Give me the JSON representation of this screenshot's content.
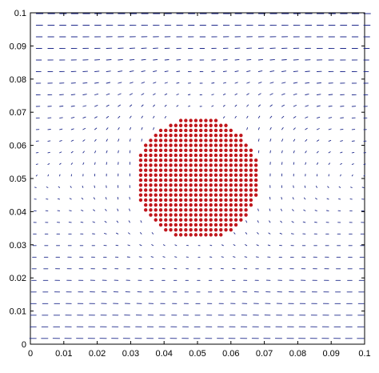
{
  "chart_data": {
    "type": "scatter",
    "title": "",
    "xlabel": "",
    "ylabel": "",
    "xlim": [
      0,
      0.1
    ],
    "ylim": [
      0,
      0.1
    ],
    "grid": false,
    "xticks": [
      "0",
      "0.01",
      "0.02",
      "0.03",
      "0.04",
      "0.05",
      "0.06",
      "0.07",
      "0.08",
      "0.09",
      "0.1"
    ],
    "yticks": [
      "0",
      "0.01",
      "0.02",
      "0.03",
      "0.04",
      "0.05",
      "0.06",
      "0.07",
      "0.08",
      "0.09",
      "0.1"
    ],
    "xtick_values": [
      0,
      0.01,
      0.02,
      0.03,
      0.04,
      0.05,
      0.06,
      0.07,
      0.08,
      0.09,
      0.1
    ],
    "ytick_values": [
      0,
      0.01,
      0.02,
      0.03,
      0.04,
      0.05,
      0.06,
      0.07,
      0.08,
      0.09,
      0.1
    ],
    "particles": {
      "shape": "disk",
      "center": [
        0.05,
        0.05
      ],
      "radius": 0.0185,
      "spacing": 0.0015,
      "color": "#c0161c"
    },
    "flow_field": {
      "grid_spacing_x": 0.0035,
      "grid_spacing_y": 0.0035,
      "color": "#1f2a8c",
      "max_speed_at_walls": true
    }
  }
}
